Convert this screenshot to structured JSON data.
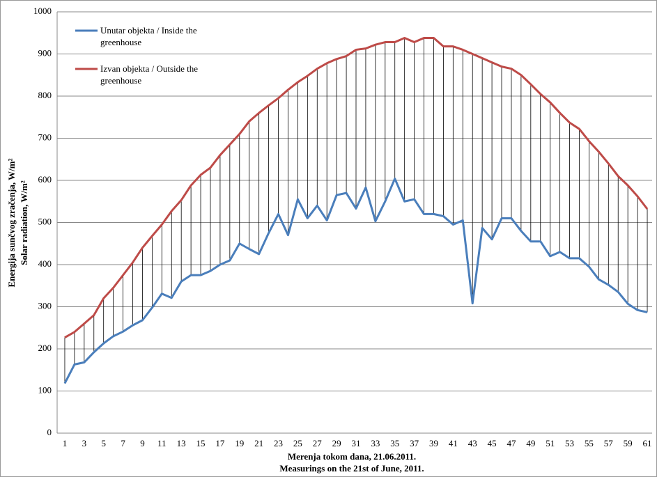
{
  "chart_data": {
    "type": "line",
    "y_label_lines": [
      "Energija sunčvog zračenja, W/m²",
      "Solar radiation, W/m²"
    ],
    "x_label_lines": [
      "Merenja tokom dana, 21.06.2011.",
      "Measurings on the 21st of June, 2011."
    ],
    "categories": [
      1,
      null,
      3,
      null,
      5,
      null,
      7,
      null,
      9,
      null,
      11,
      null,
      13,
      null,
      15,
      null,
      17,
      null,
      19,
      null,
      21,
      null,
      23,
      null,
      25,
      null,
      27,
      null,
      29,
      null,
      31,
      null,
      33,
      null,
      35,
      null,
      37,
      null,
      39,
      null,
      41,
      null,
      43,
      null,
      45,
      null,
      47,
      null,
      49,
      null,
      51,
      null,
      53,
      null,
      55,
      null,
      57,
      null,
      59,
      null,
      61
    ],
    "series": [
      {
        "name": "Unutar objekta / Inside the greenhouse",
        "color": "#4a7ebb",
        "values": [
          118,
          163,
          168,
          192,
          213,
          230,
          241,
          256,
          268,
          298,
          331,
          321,
          360,
          375,
          375,
          385,
          400,
          410,
          450,
          437,
          425,
          475,
          520,
          470,
          555,
          510,
          540,
          505,
          565,
          570,
          533,
          583,
          503,
          550,
          604,
          550,
          555,
          520,
          520,
          515,
          495,
          505,
          308,
          487,
          460,
          510,
          510,
          480,
          455,
          455,
          420,
          430,
          415,
          415,
          395,
          365,
          352,
          335,
          307,
          292,
          287
        ]
      },
      {
        "name": "Izvan objekta / Outside the greenhouse",
        "color": "#be4b48",
        "values": [
          227,
          240,
          260,
          280,
          320,
          345,
          375,
          405,
          440,
          468,
          495,
          527,
          553,
          588,
          613,
          630,
          660,
          685,
          710,
          740,
          760,
          778,
          795,
          815,
          833,
          848,
          865,
          878,
          888,
          895,
          910,
          913,
          922,
          928,
          928,
          938,
          928,
          938,
          938,
          918,
          918,
          910,
          900,
          890,
          880,
          870,
          865,
          850,
          828,
          805,
          785,
          760,
          737,
          722,
          693,
          668,
          640,
          610,
          588,
          562,
          532
        ]
      }
    ],
    "high_low_lines": true,
    "ylim": [
      0,
      1000
    ],
    "yticks": [
      0,
      100,
      200,
      300,
      400,
      500,
      600,
      700,
      800,
      900,
      1000
    ],
    "grid": true
  }
}
